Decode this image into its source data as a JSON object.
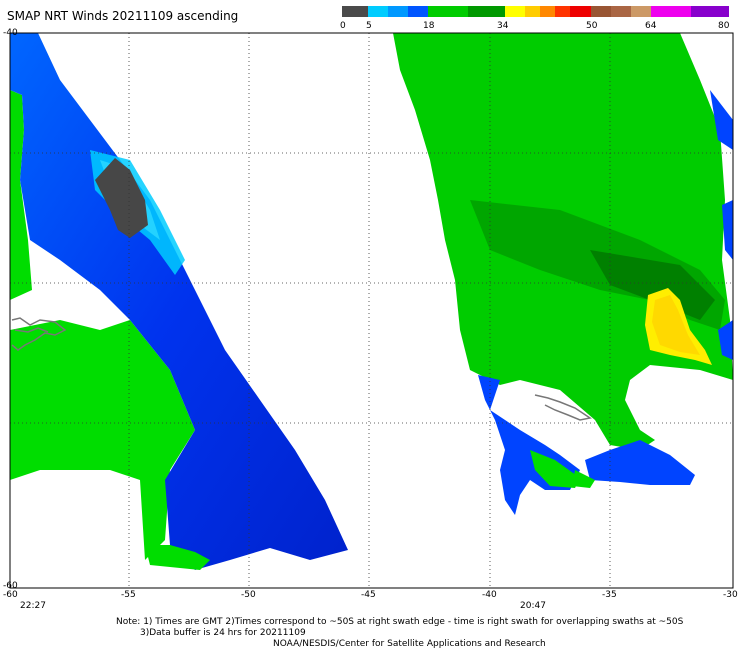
{
  "title": "SMAP NRT Winds 20211109 ascending",
  "colorbar": {
    "labels": [
      "0",
      "5",
      "18",
      "34",
      "50",
      "64",
      "80"
    ],
    "segments": [
      "#4a4a4a",
      "#555555",
      "#00ccff",
      "#0066ff",
      "#00cc00",
      "#009900",
      "#ffff00",
      "#ff9900",
      "#ff3300",
      "#cc0000",
      "#884422",
      "#cc66cc",
      "#aa00ff"
    ]
  },
  "axes": {
    "x_ticks": [
      "-60",
      "-55",
      "-50",
      "-45",
      "-40",
      "-35",
      "-30"
    ],
    "y_ticks": [
      "-40",
      "-60"
    ],
    "times": [
      "22:27",
      "20:47"
    ]
  },
  "notes": {
    "line1": "Note: 1) Times are GMT 2)Times correspond to ~50S at right swath edge - time is right swath for overlapping swaths at ~50S",
    "line2": "3)Data buffer is 24 hrs for 20211109",
    "line3": "NOAA/NESDIS/Center for Satellite Applications and Research"
  },
  "colors": {
    "land": "#00dd00",
    "dark_green": "#008800",
    "light_blue": "#00ccff",
    "blue": "#0044ff",
    "deep_blue": "#0022cc",
    "yellow": "#ffdd00",
    "gray": "#444444",
    "coast": "#888888"
  }
}
